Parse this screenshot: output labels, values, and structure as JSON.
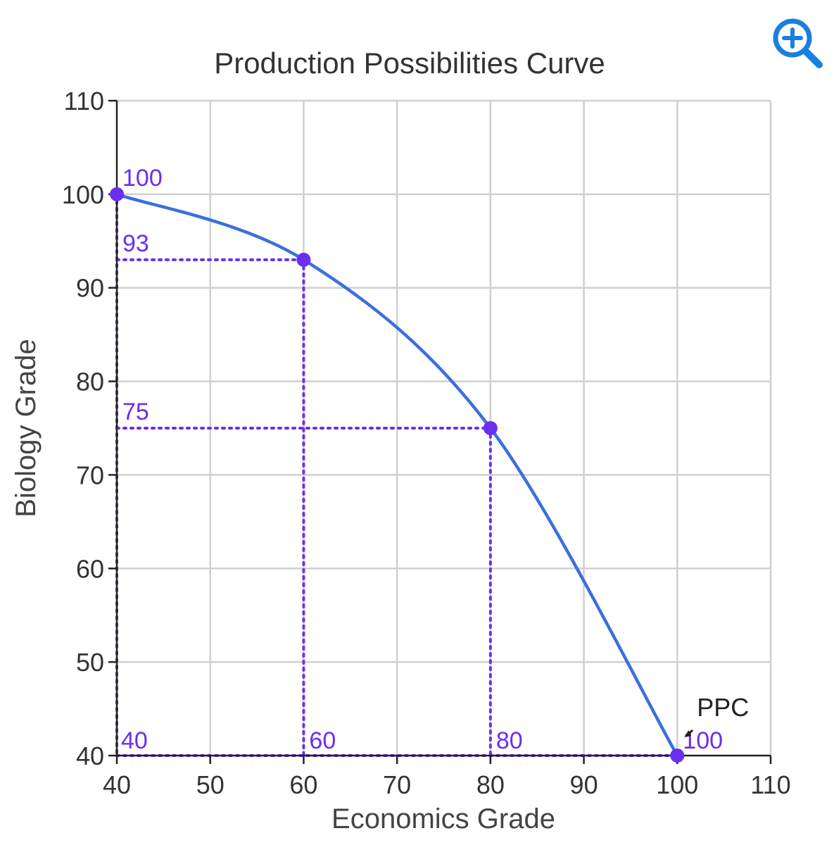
{
  "toolbar": {
    "zoom_icon": "zoom-in-icon"
  },
  "colors": {
    "curve": "#3b6fdc",
    "guide": "#6a2ff0",
    "grid": "#d0d0d0",
    "axis": "#222222",
    "text": "#333333",
    "zoom": "#1a7fe0"
  },
  "chart_data": {
    "type": "line",
    "title": "Production Possibilities Curve",
    "xlabel": "Economics Grade",
    "ylabel": "Biology Grade",
    "xlim": [
      40,
      110
    ],
    "ylim": [
      40,
      110
    ],
    "xticks": [
      40,
      50,
      60,
      70,
      80,
      90,
      100,
      110
    ],
    "yticks": [
      40,
      50,
      60,
      70,
      80,
      90,
      100,
      110
    ],
    "grid": true,
    "series": [
      {
        "name": "PPC",
        "x": [
          40,
          60,
          80,
          100
        ],
        "y": [
          100,
          93,
          75,
          40
        ]
      }
    ],
    "point_labels": [
      {
        "x": 40,
        "y": 100,
        "text": "100"
      },
      {
        "x": 40,
        "y": 93,
        "text": "93"
      },
      {
        "x": 40,
        "y": 75,
        "text": "75"
      },
      {
        "x": 40,
        "y": 40,
        "text": "40"
      },
      {
        "x": 60,
        "y": 40,
        "text": "60"
      },
      {
        "x": 80,
        "y": 40,
        "text": "80"
      },
      {
        "x": 100,
        "y": 40,
        "text": "100"
      }
    ],
    "annotations": [
      {
        "text": "PPC",
        "x": 100,
        "y": 40
      }
    ]
  }
}
